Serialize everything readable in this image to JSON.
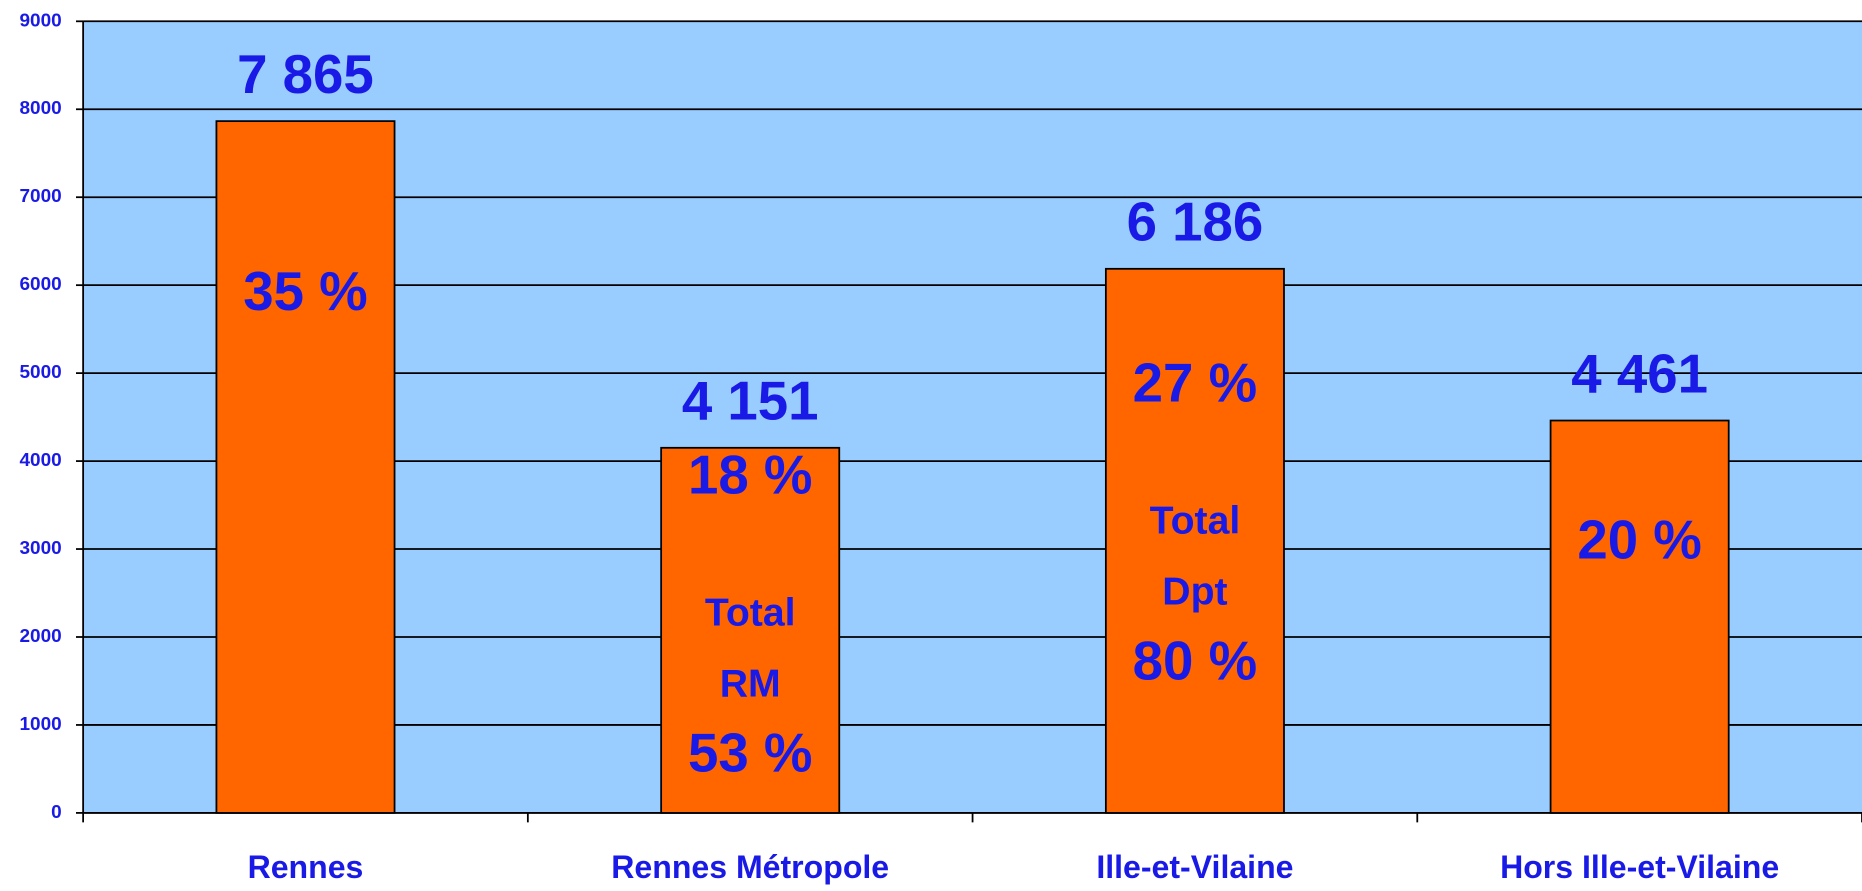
{
  "chart_data": {
    "type": "bar",
    "categories": [
      "Rennes",
      "Rennes Métropole",
      "Ille-et-Vilaine",
      "Hors Ille-et-Vilaine"
    ],
    "values": [
      7865,
      4151,
      6186,
      4461
    ],
    "value_labels": [
      "7 865",
      "4 151",
      "6 186",
      "4 461"
    ],
    "percentages": [
      35,
      18,
      27,
      20
    ],
    "percentage_labels": [
      "35 %",
      "18 %",
      "27 %",
      "20 %"
    ],
    "totals": [
      null,
      {
        "lines": [
          "Total",
          "RM"
        ],
        "value": 53,
        "value_label": "53 %"
      },
      {
        "lines": [
          "Total",
          "Dpt"
        ],
        "value": 80,
        "value_label": "80 %"
      },
      null
    ],
    "color": "#ff6600",
    "background": "#99ccff",
    "ylim": [
      0,
      9000
    ],
    "yticks": [
      0,
      1000,
      2000,
      3000,
      4000,
      5000,
      6000,
      7000,
      8000,
      9000
    ],
    "grid": true
  }
}
